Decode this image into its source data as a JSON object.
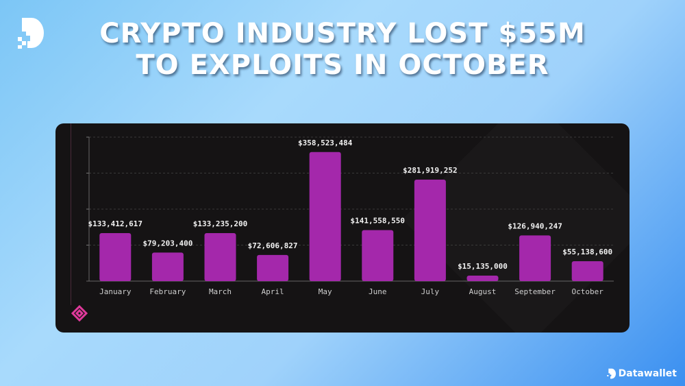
{
  "header": {
    "title_line1": "CRYPTO INDUSTRY LOST $55M",
    "title_line2": "TO EXPLOITS IN OCTOBER"
  },
  "footer": {
    "brand": "Datawallet"
  },
  "colors": {
    "bar": "#a428ab",
    "card": "#151314",
    "accent_icon": "#e0399b"
  },
  "chart_data": {
    "type": "bar",
    "title": "Crypto Industry Lost $55M to Exploits in October",
    "xlabel": "",
    "ylabel": "",
    "categories": [
      "January",
      "February",
      "March",
      "April",
      "May",
      "June",
      "July",
      "August",
      "September",
      "October"
    ],
    "values": [
      133412617,
      79203400,
      133235200,
      72606827,
      358523484,
      141558550,
      281919252,
      15135000,
      126940247,
      55138600
    ],
    "labels": [
      "$133,412,617",
      "$79,203,400",
      "$133,235,200",
      "$72,606,827",
      "$358,523,484",
      "$141,558,550",
      "$281,919,252",
      "$15,135,000",
      "$126,940,247",
      "$55,138,600"
    ],
    "ylim": [
      0,
      400000000
    ],
    "grid": true,
    "legend": "none"
  }
}
